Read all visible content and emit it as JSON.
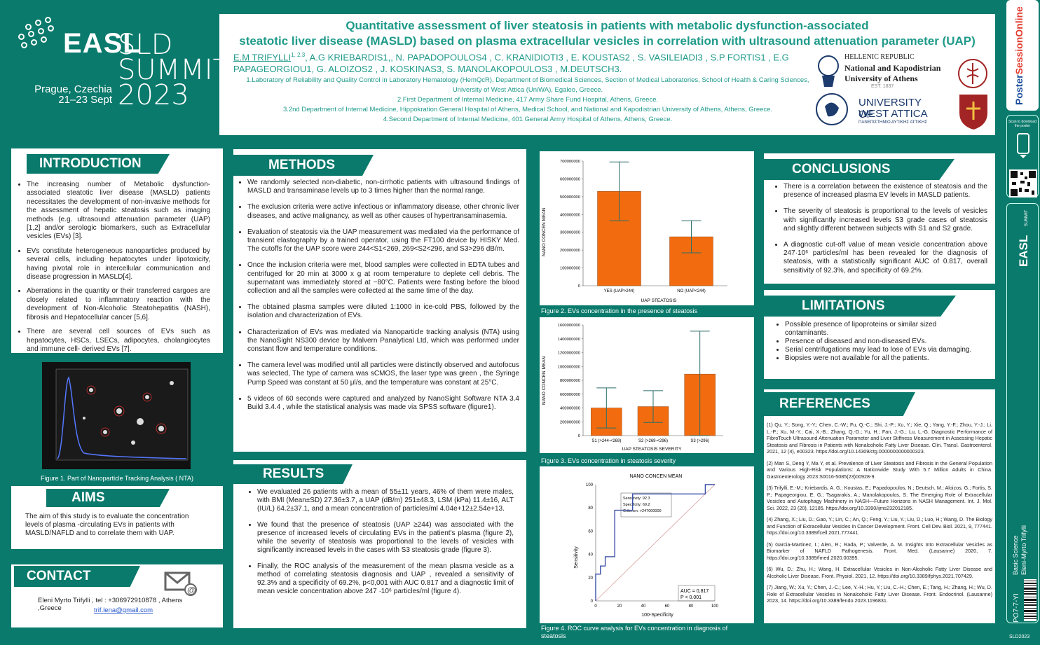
{
  "logo": {
    "easl": "EASL",
    "sld": "SLD",
    "summit": "SUMMIT",
    "year": "2023",
    "city": "Prague, Czechia",
    "dates": "21–23 Sept"
  },
  "title": {
    "line1": "Quantitative assessment of liver steatosis in patients with metabolic dysfunction-associated",
    "line2": "steatotic liver disease (MASLD) based on plasma extracellular vesicles in correlation with ultrasound attenuation parameter (UAP)"
  },
  "authors": {
    "first": "E.M TRIFYLLI",
    "first_sup": "1, 2,3",
    "rest": ", A.G KRIEBARDIS1,, N. PAPADOPOULOS4 , C. KRANIDIOTI3 , E. KOUSTAS2 , S. VASILEIADI3 , S.P FORTIS1 , E.G PAPAGEORGIOU1, G. ALOIZOS2 , J. KOSKINAS3, S. MANOLAKOPOULOS3 , M.DEUTSCH3."
  },
  "affiliations": [
    "1.Laboratory of Reliability and Quality Control in Laboratory Hematology (HemQcR), Department of Biomedical Sciences, Section of Medical Laboratories, School of Health & Caring Sciences, University of West Attica (UniWA), Egaleo, Greece.",
    "2.First Department of Internal Medicine, 417 Army Share Fund Hospital, Athens, Greece.",
    "3.2nd Department of Internal Medicine, Hippokration General Hospital of Athens, Medical School, and National and Kapodistrian University of Athens, Athens, Greece.",
    "4.Second Department of Internal Medicine, 401 General Army Hospital of Athens, Athens, Greece."
  ],
  "uoa": {
    "l1": "HELLENIC REPUBLIC",
    "l2": "National and Kapodistrian",
    "l3": "University of Athens",
    "l4": "EST. 1837"
  },
  "uwa": {
    "l1": "UNIVERSITY OF",
    "l2": "WEST ATTICA",
    "l3": "ΠΑΝΕΠΙΣΤΗΜΙΟ ΔΥΤΙΚΗΣ ΑΤΤΙΚΗΣ"
  },
  "intro": {
    "title": "INTRODUCTION",
    "items": [
      "The increasing number of Metabolic dysfunction-associated steatotic liver disease (MASLD) patients necessitates the development of non-invasive methods for the assessment of hepatic steatosis such as imaging methods (e.g. ultrasound attenuation parameter (UAP) [1,2] and/or serologic biomarkers, such as Extracellular vesicles (EVs) [3].",
      "EVs constitute heterogeneous nanoparticles produced by several cells, including hepatocytes under lipotoxicity, having pivotal role in intercellular communication and disease progression in MASLD[4].",
      "Aberrations in the quantity or their transferred cargoes are closely related to inflammatory reaction with the development of Non-Alcoholic Steatohepatitis (NASH), fibrosis and Hepatocellular cancer [5,6].",
      "There are several cell sources of EVs such as hepatocytes, HSCs, LSECs, adipocytes, cholangiocytes and immune cell- derived EVs [7]."
    ]
  },
  "fig1": {
    "caption": "Figure 1. Part of Nanoparticle Tracking Analysis ( NTA)"
  },
  "aims": {
    "title": "AIMS",
    "text": "The aim of this study is to evaluate the concentration levels of plasma -circulating EVs in patients with MASLD/NAFLD and to correlate them with UAP."
  },
  "contact": {
    "title": "CONTACT",
    "text": "Eleni Myrto Trifylli , tel : +306972910878 , Athens ,Greece",
    "email": "trif.lena@gmail.com"
  },
  "methods": {
    "title": "METHODS",
    "items": [
      "We randomly selected non-diabetic, non-cirrhotic patients with ultrasound findings of MASLD and transaminase levels up to 3 times higher than the normal range.",
      "The exclusion criteria were active infectious or inflammatory disease, other chronic liver diseases, and active malignancy, as well as other causes of hypertransaminasemia.",
      "Evaluation of steatosis via the UAP measurement was mediated via the performance of transient elastography by a trained operator, using the FT100 device by HISKY Med. The cutoffs for the UAP score were 244<S1<269, 269<S2<296, and S3>296 dB/m.",
      "Once the inclusion criteria were met, blood samples were collected in EDTA tubes and centrifuged for 20 min at 3000 x g at room temperature to deplete cell debris. The supernatant was immediately stored at −80°C. Patients were fasting before the blood collection and all the samples were collected at the same time of the day.",
      "The obtained plasma samples were diluted 1:1000 in ice-cold PBS, followed by the isolation and characterization of EVs.",
      "Characterization of EVs was mediated via Nanoparticle tracking analysis (NTA) using the NanoSight NS300 device by Malvern Panalytical Ltd, which was performed under constant flow and temperature conditions.",
      "The camera level was modified until all particles were distinctly observed and autofocus was selected, The type of camera was sCMOS, the laser type was green , the Syringe Pump Speed was constant at 50 μl/s, and the temperature was constant at 25°C.",
      "5 videos of 60 seconds were captured and analyzed by NanoSight Software NTA 3.4 Build 3.4.4 , while the statistical analysis was made via SPSS software (figure1)."
    ]
  },
  "results": {
    "title": "RESULTS",
    "items": [
      "We evaluated 26 patients with a mean of 55±11 years, 46% of them were males, with BMI (Mean±SD) 27.36±3.7, a UAP (dB/m) 251±48.3, LSM (kPa) 11.4±16, ALT (IU/L) 64.2±37.1, and a mean concentration of particles/ml 4.04e+12±2.54e+13.",
      "We found that the presence of steatosis (UAP ≥244) was associated with the presence of increased levels of circulating EVs in the patient's plasma (figure 2), while the severity of steatosis was proportional to the levels of vesicles with significantly increased levels in the cases with S3 steatosis grade (figure 3).",
      "Finally, the ROC analysis of the measurement of the mean plasma vesicle as a method of correlating steatosis diagnosis and UAP , revealed a sensitivity of 92.3% and a specificity of 69.2%, p<0,001 with AUC 0.817 and a diagnostic limit of mean vesicle concentration above 247 ·10⁶ particles/ml (figure 4)."
    ]
  },
  "fig2": {
    "caption": "Figure 2. EVs concentration in the presence of steatosis",
    "ylabel": "NANO CONCEN MEAN",
    "xlabel": "UAP STEATOSIS",
    "yticks": [
      "0",
      "100000000",
      "200000000",
      "300000000",
      "400000000",
      "500000000",
      "600000000",
      "700000000"
    ],
    "categories": [
      "YES (UAP>244)",
      "NO (UAP<244)"
    ]
  },
  "fig3": {
    "caption": "Figure 3. EVs concentration in steatosis severity",
    "ylabel": "NANO CONCEN MEAN",
    "xlabel": "UAP STEATOSIS SEVERITY",
    "yticks": [
      "0",
      "200000000",
      "400000000",
      "600000000",
      "800000000",
      "1000000000",
      "1200000000",
      "1400000000",
      "1600000000"
    ],
    "categories": [
      "S1 (>244-<269)",
      "S2 (>269-<296)",
      "S3 (>296)"
    ]
  },
  "fig4": {
    "caption": "Figure 4. ROC curve analysis for EVs concentration in diagnosis of steatosis",
    "title": "NANO CONCEN MEAN",
    "ylabel": "Sensitivity",
    "xlabel": "100-Specificity",
    "ticks": [
      "0",
      "20",
      "40",
      "60",
      "80",
      "100"
    ],
    "legend": [
      "Sensitivity: 92.3",
      "Specificity: 69.2",
      "Criterion: >247000000"
    ],
    "auc": "AUC = 0,817",
    "p": "P < 0.001"
  },
  "conclusions": {
    "title": "CONCLUSIONS",
    "items": [
      "There is a correlation between the existence of steatosis and the presence of increased plasma EV levels in MASLD patients.",
      "The severity of steatosis is proportional to the levels of vesicles with significantly increased levels S3 grade cases of steatosis and slightly different between subjects with S1 and S2 grade.",
      "A diagnostic cut-off value of mean vesicle concentration above 247·10⁶ particles/ml has been revealed for the diagnosis of steatosis, with a statistically significant AUC of 0.817, overall sensitivity of 92.3%, and specificity of 69.2%."
    ]
  },
  "limitations": {
    "title": "LIMITATIONS",
    "items": [
      "Possible presence of lipoproteins or similar sized contaminants.",
      "Presence of diseased and non-diseased EVs.",
      "Serial centrifugations may lead to lose of EVs via damaging.",
      "Biopsies were not available for all the patients."
    ]
  },
  "references": {
    "title": "REFERENCES",
    "items": [
      "(1) Qu, Y.; Song, Y.-Y.; Chen, C.-W.; Fu, Q.-C.; Shi, J.-P.; Xu, Y.; Xie, Q.; Yang, Y.-F.; Zhou, Y.-J.; Li, L.-P.; Xu, M.-Y.; Cai, X.-B.; Zhang, Q.-D.; Yu, H.; Fan, J.-G.; Lu, L.-G. Diagnostic Performance of FibroTouch Ultrasound Attenuation Parameter and Liver Stiffness Measurement in Assessing Hepatic Steatosis and Fibrosis in Patients with Nonalcoholic Fatty Liver Disease. Clin. Transl. Gastroenterol. 2021, 12 (4), e00323. https://doi.org/10.14309/ctg.0000000000000323.",
      "(2) Man S, Deng Y, Ma Y, et al. Prevalence of Liver Steatosis and Fibrosis in the General Population and Various High-Risk Populations: A Nationwide Study With 5.7 Million Adults in China. Gastroenterology 2023:S0016-5085(23)00928-9.",
      "(3) Trifylli, E.-M.; Kriebardis, A. G.; Koustas, E.; Papadopoulos, N.; Deutsch, M.; Aloizos, G.; Fortis, S. P.; Papageorgiou, E. G.; Tsagarakis, A.; Manolakopoulos, S. The Emerging Role of Extracellular Vesicles and Autophagy Machinery in NASH—Future Horizons in NASH Management. Int. J. Mol. Sci. 2022, 23 (20), 12185. https://doi.org/10.3390/ijms232012185.",
      "(4) Zhang, X.; Liu, D.; Gao, Y.; Lin, C.; An, Q.; Feng, Y.; Liu, Y.; Liu, D.; Luo, H.; Wang, D. The Biology and Function of Extracellular Vesicles in Cancer Development. Front. Cell Dev. Biol. 2021, 9, 777441. https://doi.org/10.3389/fcell.2021.777441.",
      "(5) Garcia-Martinez, I.; Alen, R.; Rada, P.; Valverde, A. M. Insights Into Extracellular Vesicles as Biomarker of NAFLD Pathogenesis. Front. Med. (Lausanne) 2020, 7. https://doi.org/10.3389/fmed.2020.00395.",
      "(6) Wu, D.; Zhu, H.; Wang, H. Extracellular Vesicles in Non-Alcoholic Fatty Liver Disease and Alcoholic Liver Disease. Front. Physiol. 2021, 12. https://doi.org/10.3389/fphys.2021.707429.",
      "(7) Jiang, W.; Xu, Y.; Chen, J.-C.; Lee, Y.-H.; Hu, Y.; Liu, C.-H.; Chen, E.; Tang, H.; Zhang, H.; Wu, D. Role of Extracellular Vesicles in Nonalcoholic Fatty Liver Disease. Front. Endocrinol. (Lausanne) 2023, 14. https://doi.org/10.3389/fendo.2023.1196831."
    ]
  },
  "sidebar": {
    "poster": "Poster",
    "session": "SessionOnline",
    "scan": "Scan to download the poster",
    "summit": "SUMMIT",
    "easl": "EASL",
    "basic": "Basic Science",
    "author": "Eleni-Myrto Trifylli",
    "code": "PO7-7-YI",
    "sld": "SLD2023"
  },
  "colors": {
    "teal": "#0a7a6c",
    "orange": "#f26b0f",
    "accent": "#1f9a8a"
  }
}
